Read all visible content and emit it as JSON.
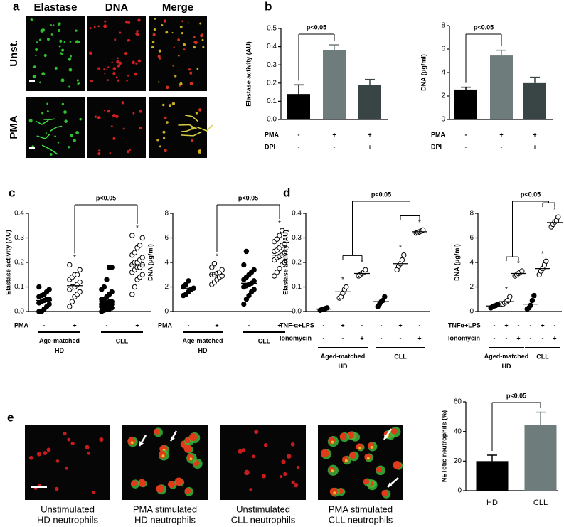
{
  "panel_labels": [
    "a",
    "b",
    "c",
    "d",
    "e"
  ],
  "panel_a": {
    "columns": [
      "Elastase",
      "DNA",
      "Merge"
    ],
    "rows": [
      "Unst.",
      "PMA"
    ]
  },
  "panel_e": {
    "captions": [
      [
        "Unstimulated",
        "HD  neutrophils"
      ],
      [
        "PMA stimulated",
        "HD  neutrophils"
      ],
      [
        "Unstimulated",
        "CLL neutrophils"
      ],
      [
        "PMA stimulated",
        "CLL neutrophils"
      ]
    ]
  },
  "chart_data": [
    {
      "type": "bar",
      "ylabel": "Elastase activity (AU)",
      "values": [
        0.14,
        0.38,
        0.19
      ],
      "errors": [
        0.05,
        0.03,
        0.03
      ],
      "colors": [
        "#000000",
        "#6f7c7c",
        "#394545"
      ],
      "ylim": [
        0,
        0.5
      ],
      "yticks": [
        {
          "value": 0,
          "label": "0.0"
        },
        0.1,
        0.2,
        0.3,
        0.4,
        0.5
      ],
      "conditions": [
        {
          "name": "PMA",
          "signs": [
            "-",
            "+",
            "+"
          ]
        },
        {
          "name": "DPI",
          "signs": [
            "-",
            "-",
            "+"
          ]
        }
      ],
      "significance": "p<0.05"
    },
    {
      "type": "bar",
      "ylabel": "DNA (μg/ml)",
      "values": [
        2.55,
        5.45,
        3.1
      ],
      "errors": [
        0.2,
        0.45,
        0.5
      ],
      "colors": [
        "#000000",
        "#6f7c7c",
        "#394545"
      ],
      "ylim": [
        0,
        8
      ],
      "yticks": [
        0,
        2,
        4,
        6,
        8
      ],
      "conditions": [
        {
          "name": "PMA",
          "signs": [
            "-",
            "+",
            "+"
          ]
        },
        {
          "name": "DPI",
          "signs": [
            "-",
            "-",
            "+"
          ]
        }
      ],
      "significance": "p<0.05"
    },
    {
      "type": "dot",
      "ylabel": "Elastase activity (AU)",
      "ylim": [
        0,
        0.4
      ],
      "yticks": [
        {
          "value": 0,
          "label": "0.0"
        },
        0.1,
        0.2,
        0.3,
        0.4
      ],
      "groups": [
        {
          "filled": true,
          "mean": 0.045,
          "values": [
            0.0,
            0.0,
            0.01,
            0.02,
            0.03,
            0.035,
            0.04,
            0.045,
            0.05,
            0.05,
            0.06,
            0.065,
            0.07,
            0.08,
            0.09,
            0.1
          ]
        },
        {
          "filled": false,
          "mean": 0.105,
          "mark": "*",
          "values": [
            0.02,
            0.04,
            0.06,
            0.07,
            0.08,
            0.09,
            0.1,
            0.1,
            0.11,
            0.12,
            0.13,
            0.14,
            0.15,
            0.15,
            0.17,
            0.19
          ]
        },
        {
          "filled": true,
          "mean": 0.04,
          "values": [
            0.0,
            0.005,
            0.01,
            0.01,
            0.015,
            0.02,
            0.02,
            0.02,
            0.025,
            0.03,
            0.03,
            0.03,
            0.035,
            0.04,
            0.04,
            0.05,
            0.05,
            0.06,
            0.07,
            0.08,
            0.09,
            0.1,
            0.13,
            0.18,
            0.18
          ]
        },
        {
          "filled": false,
          "mean": 0.19,
          "mark": "*",
          "values": [
            0.07,
            0.1,
            0.13,
            0.14,
            0.15,
            0.16,
            0.17,
            0.18,
            0.18,
            0.19,
            0.19,
            0.2,
            0.2,
            0.21,
            0.22,
            0.23,
            0.24,
            0.26,
            0.27,
            0.3,
            0.31
          ]
        }
      ],
      "conditions": [
        {
          "name": "PMA",
          "signs": [
            "-",
            "+",
            "-",
            "+"
          ]
        }
      ],
      "group_labels": [
        "Age-matched HD",
        "CLL"
      ],
      "significance": "p<0.05"
    },
    {
      "type": "dot",
      "ylabel": "DNA (μg/ml)",
      "ylim": [
        0,
        8
      ],
      "yticks": [
        0,
        2,
        4,
        6,
        8
      ],
      "groups": [
        {
          "filled": true,
          "mean": 1.9,
          "values": [
            1.3,
            1.4,
            1.6,
            1.8,
            1.9,
            2.0,
            2.2,
            2.5
          ]
        },
        {
          "filled": false,
          "mean": 3.0,
          "mark": "*",
          "values": [
            2.2,
            2.4,
            2.6,
            2.8,
            2.9,
            3.0,
            3.0,
            3.1,
            3.2,
            3.4,
            3.6,
            3.9
          ]
        },
        {
          "filled": true,
          "mean": 2.3,
          "values": [
            0.6,
            1.0,
            1.3,
            1.6,
            1.8,
            2.0,
            2.1,
            2.2,
            2.3,
            2.5,
            2.6,
            2.8,
            3.0,
            3.2,
            3.4,
            3.8,
            4.9
          ]
        },
        {
          "filled": false,
          "mean": 4.6,
          "mark": "*",
          "values": [
            2.9,
            3.2,
            3.5,
            3.8,
            4.0,
            4.2,
            4.4,
            4.5,
            4.6,
            4.8,
            4.9,
            5.0,
            5.2,
            5.4,
            5.5,
            5.7,
            5.9,
            6.2,
            6.6
          ]
        }
      ],
      "conditions": [
        {
          "name": "PMA",
          "signs": [
            "-",
            "+",
            "-",
            "+"
          ]
        }
      ],
      "group_labels": [
        "Age-matched HD",
        "CLL"
      ],
      "significance": "p<0.05"
    },
    {
      "type": "dot",
      "ylabel": "Elastase activity (AU)",
      "ylim": [
        0,
        0.4
      ],
      "yticks": [
        {
          "value": 0,
          "label": "0.0"
        },
        0.1,
        0.2,
        0.3,
        0.4
      ],
      "groups": [
        {
          "filled": true,
          "mean": 0.01,
          "values": [
            0.005,
            0.008,
            0.01,
            0.012,
            0.015
          ]
        },
        {
          "filled": false,
          "mean": 0.08,
          "mark": "*",
          "values": [
            0.055,
            0.06,
            0.075,
            0.09,
            0.1
          ]
        },
        {
          "filled": false,
          "mean": 0.155,
          "mark": "*",
          "values": [
            0.145,
            0.15,
            0.155,
            0.16,
            0.17
          ]
        },
        {
          "filled": true,
          "mean": 0.04,
          "values": [
            0.02,
            0.03,
            0.04,
            0.045,
            0.06
          ]
        },
        {
          "filled": false,
          "mean": 0.195,
          "mark": "*",
          "values": [
            0.17,
            0.185,
            0.195,
            0.21,
            0.23
          ]
        },
        {
          "filled": false,
          "mean": 0.325,
          "mark": "*",
          "values": [
            0.32,
            0.322,
            0.325,
            0.328,
            0.332
          ]
        }
      ],
      "conditions": [
        {
          "name": "TNF-α+LPS",
          "signs": [
            "-",
            "+",
            "-",
            "-",
            "+",
            "-"
          ]
        },
        {
          "name": "Ionomycin",
          "signs": [
            "-",
            "-",
            "+",
            "-",
            "-",
            "+"
          ]
        }
      ],
      "group_labels": [
        "Aged-matched HD",
        "CLL"
      ],
      "significance": "p<0.05"
    },
    {
      "type": "dot",
      "ylabel": "DNA (μg/ml)",
      "ylim": [
        0,
        8
      ],
      "yticks": [
        0,
        2,
        4,
        6,
        8
      ],
      "groups": [
        {
          "filled": true,
          "mean": 0.45,
          "values": [
            0.3,
            0.4,
            0.45,
            0.5,
            0.6
          ]
        },
        {
          "filled": false,
          "mean": 0.8,
          "mark": "*",
          "values": [
            0.6,
            0.7,
            0.8,
            0.9,
            1.2
          ]
        },
        {
          "filled": false,
          "mean": 3.1,
          "mark": "*",
          "values": [
            2.9,
            3.0,
            3.1,
            3.2,
            3.3
          ]
        },
        {
          "filled": true,
          "mean": 0.6,
          "values": [
            0.2,
            0.3,
            0.5,
            0.9,
            1.3
          ]
        },
        {
          "filled": false,
          "mean": 3.5,
          "mark": "*",
          "values": [
            3.0,
            3.3,
            3.5,
            3.8,
            4.1
          ]
        },
        {
          "filled": false,
          "mean": 7.25,
          "mark": "*",
          "values": [
            6.9,
            7.1,
            7.3,
            7.4,
            7.7
          ]
        }
      ],
      "conditions": [
        {
          "name": "TNFα+LPS",
          "signs": [
            "-",
            "+",
            "-",
            "-",
            "+",
            "-"
          ]
        },
        {
          "name": "Ionomycin",
          "signs": [
            "-",
            "-",
            "+",
            "-",
            "-",
            "+"
          ]
        }
      ],
      "group_labels": [
        "Aged-matched HD",
        "CLL"
      ],
      "significance": "p<0.05"
    },
    {
      "type": "bar",
      "ylabel": "NETotic neutrophils (%)",
      "categories": [
        "HD",
        "CLL"
      ],
      "values": [
        20,
        44.5
      ],
      "errors": [
        4,
        8.5
      ],
      "colors": [
        "#000000",
        "#6f7c7c"
      ],
      "ylim": [
        0,
        60
      ],
      "yticks": [
        0,
        20,
        40,
        60
      ],
      "significance": "p<0.05"
    }
  ]
}
